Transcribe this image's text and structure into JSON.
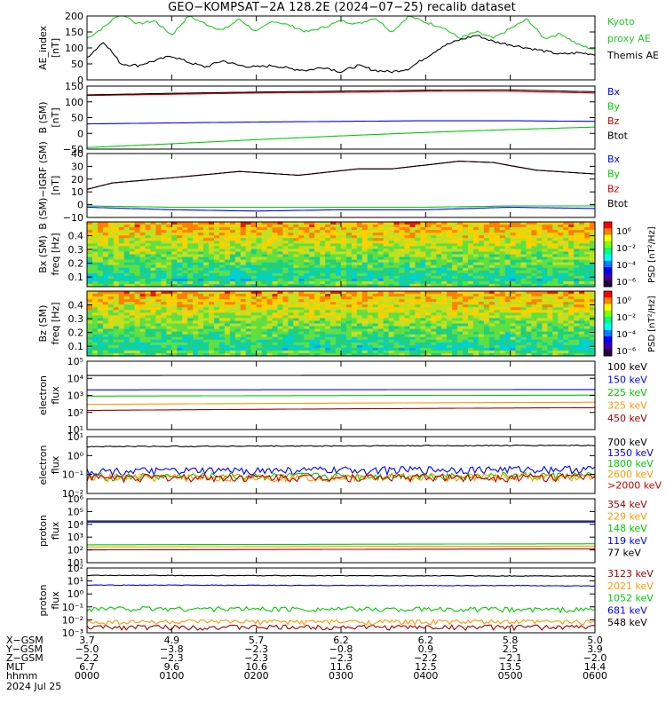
{
  "title": "GEO−KOMPSAT−2A 128.2E (2024−07−25) recalib dataset",
  "colors": {
    "black": "#000000",
    "blue": "#0000ff",
    "green": "#00cc00",
    "brightgreen": "#00dd00",
    "red": "#cc0000",
    "orange": "#ff9900",
    "darkred": "#990000",
    "kyoto": "#22cc22"
  },
  "chart_data": [
    {
      "type": "line",
      "panel": "ae_index",
      "ylabel": [
        "AE_index",
        "[nT]"
      ],
      "ylim": [
        0,
        200
      ],
      "yticks": [
        "0",
        "50",
        "100",
        "150",
        "200"
      ],
      "series": [
        {
          "name": "Kyoto proxy AE",
          "legend": [
            "Kyoto",
            "proxy AE"
          ],
          "color": "#22cc22",
          "x": [
            0,
            0.2,
            0.4,
            0.6,
            0.8,
            1.0,
            1.2,
            1.4,
            1.6,
            1.8,
            2.0,
            2.2,
            2.4,
            2.6,
            2.8,
            3.0,
            3.2,
            3.4,
            3.6,
            3.8,
            4.0,
            4.2,
            4.4,
            4.6,
            4.8,
            5.0,
            5.2,
            5.4,
            5.6,
            5.8,
            6.0
          ],
          "values": [
            130,
            165,
            210,
            175,
            185,
            140,
            200,
            175,
            155,
            190,
            150,
            185,
            170,
            150,
            165,
            185,
            175,
            195,
            150,
            200,
            180,
            165,
            130,
            150,
            130,
            160,
            190,
            130,
            145,
            110,
            95
          ]
        },
        {
          "name": "Themis AE",
          "legend": [
            "Themis AE"
          ],
          "color": "#000000",
          "x": [
            0,
            0.2,
            0.4,
            0.6,
            0.8,
            1.0,
            1.2,
            1.4,
            1.6,
            1.8,
            2.0,
            2.2,
            2.4,
            2.6,
            2.8,
            3.0,
            3.2,
            3.4,
            3.6,
            3.8,
            4.0,
            4.2,
            4.4,
            4.6,
            4.8,
            5.0,
            5.2,
            5.4,
            5.6,
            5.8,
            6.0
          ],
          "values": [
            70,
            120,
            50,
            45,
            60,
            75,
            55,
            40,
            60,
            45,
            40,
            45,
            35,
            30,
            40,
            25,
            45,
            30,
            25,
            35,
            70,
            105,
            125,
            140,
            120,
            110,
            100,
            90,
            80,
            85,
            80
          ]
        }
      ]
    },
    {
      "type": "line",
      "panel": "b_sm",
      "ylabel": [
        "B (SM)",
        "[nT]"
      ],
      "ylim": [
        -50,
        150
      ],
      "yticks": [
        "−50",
        "0",
        "50",
        "100",
        "150"
      ],
      "series": [
        {
          "name": "Bx",
          "color": "#0000ff",
          "x": [
            0,
            1,
            2,
            3,
            4,
            5,
            6
          ],
          "values": [
            30,
            33,
            36,
            38,
            40,
            40,
            38
          ]
        },
        {
          "name": "By",
          "color": "#00cc00",
          "x": [
            0,
            1,
            2,
            3,
            4,
            5,
            6
          ],
          "values": [
            -45,
            -33,
            -20,
            -8,
            3,
            12,
            20
          ]
        },
        {
          "name": "Bz",
          "color": "#cc0000",
          "x": [
            0,
            1,
            2,
            3,
            4,
            5,
            6
          ],
          "values": [
            120,
            124,
            128,
            130,
            133,
            133,
            128
          ]
        },
        {
          "name": "Btot",
          "color": "#000000",
          "x": [
            0,
            1,
            2,
            3,
            4,
            5,
            6
          ],
          "values": [
            122,
            127,
            131,
            134,
            137,
            138,
            132
          ]
        }
      ]
    },
    {
      "type": "line",
      "panel": "b_sm_minus_igrf",
      "ylabel": [
        "B (SM)−IGRF (SM)",
        "[nT]"
      ],
      "ylim": [
        -10,
        40
      ],
      "yticks": [
        "−10",
        "0",
        "10",
        "20",
        "30",
        "40"
      ],
      "series": [
        {
          "name": "Bx",
          "color": "#0000ff",
          "x": [
            0,
            1,
            2,
            3,
            4,
            5,
            6
          ],
          "values": [
            -2,
            -4,
            -5,
            -4,
            -4,
            -2,
            -3
          ]
        },
        {
          "name": "By",
          "color": "#00cc00",
          "x": [
            0,
            1,
            2,
            3,
            4,
            5,
            6
          ],
          "values": [
            -1,
            -2,
            -2,
            -2,
            -2,
            -1,
            -1
          ]
        },
        {
          "name": "Bz",
          "color": "#cc0000",
          "x": [
            0,
            0.3,
            1,
            1.8,
            2.5,
            3.2,
            3.6,
            4.4,
            4.8,
            5.3,
            6
          ],
          "values": [
            12,
            17,
            21,
            26,
            23,
            28,
            28,
            34,
            33,
            27,
            24
          ]
        },
        {
          "name": "Btot",
          "color": "#000000",
          "x": [
            0,
            0.3,
            1,
            1.8,
            2.5,
            3.2,
            3.6,
            4.4,
            4.8,
            5.3,
            6
          ],
          "values": [
            12,
            17,
            21,
            26,
            23,
            28,
            28,
            34,
            33,
            27,
            24
          ]
        }
      ]
    },
    {
      "type": "heatmap",
      "panel": "bx_spectrogram",
      "ylabel": [
        "Bx (SM)",
        "freq [Hz]"
      ],
      "ylim": [
        0.03,
        0.5
      ],
      "yticks": [
        "0.1",
        "0.2",
        "0.3",
        "0.4"
      ],
      "colorbar": {
        "label": "PSD [nT²/Hz]",
        "ticks": [
          "10⁶",
          "10⁻²",
          "10⁻⁴",
          "10⁻⁶"
        ]
      }
    },
    {
      "type": "heatmap",
      "panel": "bz_spectrogram",
      "ylabel": [
        "Bz (SM)",
        "freq [Hz]"
      ],
      "ylim": [
        0.03,
        0.5
      ],
      "yticks": [
        "0.1",
        "0.2",
        "0.3",
        "0.4"
      ],
      "colorbar": {
        "label": "PSD [nT²/Hz]",
        "ticks": [
          "10⁰",
          "10⁻²",
          "10⁻⁴",
          "10⁻⁶"
        ]
      }
    },
    {
      "type": "line",
      "panel": "electron_flux_low",
      "ylabel": [
        "electron",
        "flux"
      ],
      "scale": "log",
      "ylim": [
        1,
        100000
      ],
      "yticks": [
        "10¹",
        "10²",
        "10³",
        "10⁴",
        "10⁵"
      ],
      "series": [
        {
          "name": "100 keV",
          "color": "#000000",
          "x": [
            0,
            6
          ],
          "values": [
            9000,
            9500
          ]
        },
        {
          "name": "150 keV",
          "color": "#0000ff",
          "x": [
            0,
            6
          ],
          "values": [
            800,
            850
          ]
        },
        {
          "name": "225 keV",
          "color": "#00cc00",
          "x": [
            0,
            6
          ],
          "values": [
            280,
            330
          ]
        },
        {
          "name": "325 keV",
          "color": "#ff9900",
          "x": [
            0,
            6
          ],
          "values": [
            70,
            100
          ]
        },
        {
          "name": "450 keV",
          "color": "#990000",
          "x": [
            0,
            6
          ],
          "values": [
            25,
            40
          ]
        }
      ]
    },
    {
      "type": "line",
      "panel": "electron_flux_high",
      "ylabel": [
        "electron",
        "flux"
      ],
      "scale": "log",
      "ylim": [
        0.01,
        10
      ],
      "yticks": [
        "10⁻²",
        "10⁻¹",
        "10⁰",
        "10¹"
      ],
      "series": [
        {
          "name": "700 keV",
          "color": "#000000",
          "x": [
            0,
            6
          ],
          "values": [
            3,
            3.5
          ]
        },
        {
          "name": "1350 keV",
          "color": "#0000ff",
          "x": [
            0,
            6
          ],
          "values": [
            0.15,
            0.2
          ]
        },
        {
          "name": "1800 keV",
          "color": "#00cc00",
          "x": [
            0,
            6
          ],
          "values": [
            0.08,
            0.09
          ]
        },
        {
          "name": "2600 keV",
          "color": "#ff9900",
          "x": [
            0,
            6
          ],
          "values": [
            0.07,
            0.08
          ]
        },
        {
          "name": ">2000 keV",
          "color": "#cc0000",
          "x": [
            0,
            6
          ],
          "values": [
            0.07,
            0.075
          ]
        }
      ]
    },
    {
      "type": "line",
      "panel": "proton_flux_low",
      "ylabel": [
        "proton",
        "flux"
      ],
      "scale": "log",
      "ylim": [
        10,
        1000000
      ],
      "yticks": [
        "10¹",
        "10²",
        "10³",
        "10⁴",
        "10⁵",
        "10⁶"
      ],
      "series": [
        {
          "name": "354 keV",
          "color": "#990000",
          "x": [
            0,
            6
          ],
          "values": [
            100,
            120
          ]
        },
        {
          "name": "229 keV",
          "color": "#ff9900",
          "x": [
            0,
            6
          ],
          "values": [
            170,
            200
          ]
        },
        {
          "name": "148 keV",
          "color": "#00cc00",
          "x": [
            0,
            6
          ],
          "values": [
            250,
            300
          ]
        },
        {
          "name": "119 keV",
          "color": "#0000ff",
          "x": [
            0,
            6
          ],
          "values": [
            15000,
            15000
          ]
        },
        {
          "name": "77 keV",
          "color": "#000000",
          "x": [
            0,
            6
          ],
          "values": [
            18000,
            18000
          ]
        }
      ]
    },
    {
      "type": "line",
      "panel": "proton_flux_high",
      "ylabel": [
        "proton",
        "flux"
      ],
      "scale": "log",
      "ylim": [
        0.0005,
        100
      ],
      "yticks": [
        "10⁻³",
        "10⁻²",
        "10⁻¹",
        "10⁰",
        "10¹",
        "10²"
      ],
      "series": [
        {
          "name": "3123 keV",
          "color": "#990000",
          "x": [
            0,
            6
          ],
          "values": [
            0.0015,
            0.0015
          ]
        },
        {
          "name": "2021 keV",
          "color": "#ff9900",
          "x": [
            0,
            6
          ],
          "values": [
            0.004,
            0.004
          ]
        },
        {
          "name": "1052 keV",
          "color": "#00cc00",
          "x": [
            0,
            6
          ],
          "values": [
            0.05,
            0.04
          ]
        },
        {
          "name": "681 keV",
          "color": "#0000ff",
          "x": [
            0,
            6
          ],
          "values": [
            4,
            3.5
          ]
        },
        {
          "name": "548 keV",
          "color": "#000000",
          "x": [
            0,
            6
          ],
          "values": [
            25,
            22
          ]
        }
      ]
    }
  ],
  "ephemeris": {
    "labels": [
      "X−GSM",
      "Y−GSM",
      "Z−GSM",
      "MLT",
      "hhmm"
    ],
    "date": "2024 Jul 25",
    "columns": [
      [
        "3.7",
        "−5.0",
        "−2.2",
        "6.7",
        "0000"
      ],
      [
        "4.9",
        "−3.8",
        "−2.3",
        "9.6",
        "0100"
      ],
      [
        "5.7",
        "−2.3",
        "−2.3",
        "10.6",
        "0200"
      ],
      [
        "6.2",
        "−0.8",
        "−2.3",
        "11.6",
        "0300"
      ],
      [
        "6.2",
        "0.9",
        "−2.2",
        "12.5",
        "0400"
      ],
      [
        "5.8",
        "2.5",
        "−2.1",
        "13.5",
        "0500"
      ],
      [
        "5.0",
        "3.9",
        "−2.0",
        "14.4",
        "0600"
      ]
    ]
  }
}
